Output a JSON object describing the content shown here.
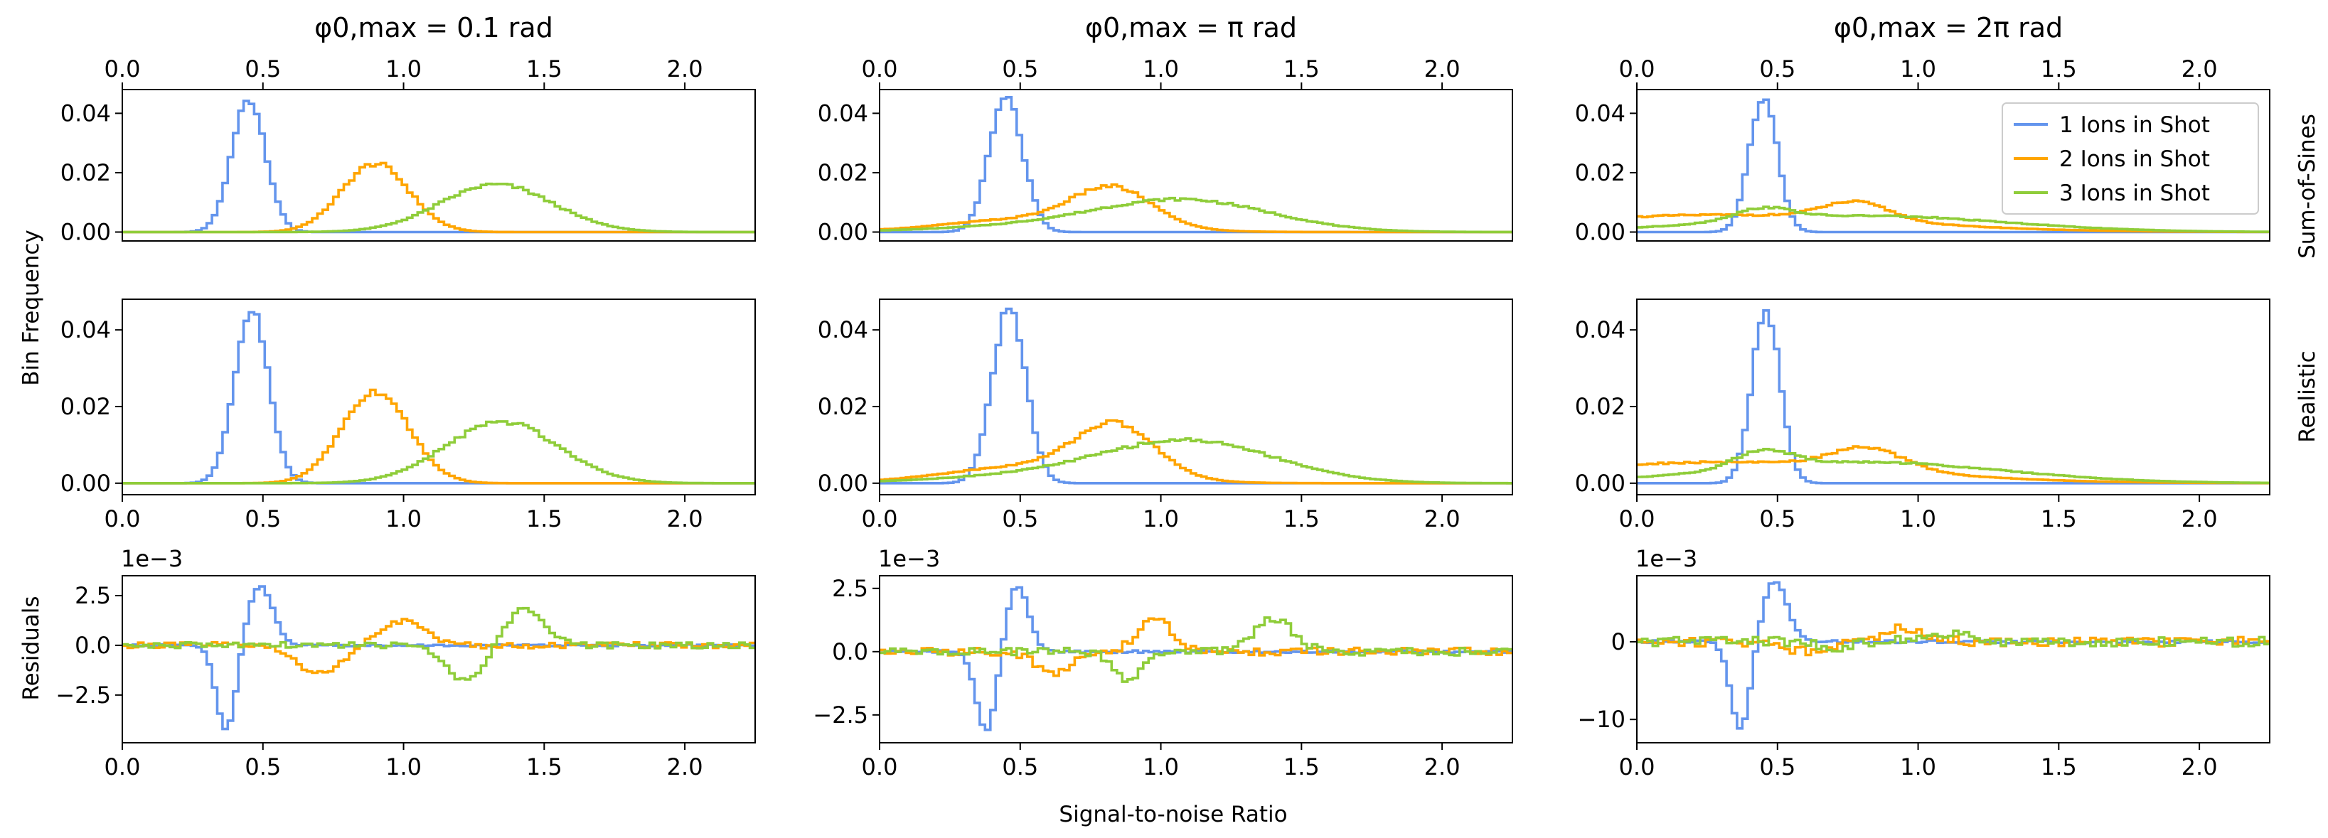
{
  "figure": {
    "column_titles": [
      "φ0,max = 0.1 rad",
      "φ0,max = π rad",
      "φ0,max = 2π rad"
    ],
    "row_labels": [
      "Sum-of-Sines",
      "Realistic"
    ],
    "ylabel_main": "Bin Frequency",
    "ylabel_residuals": "Residuals",
    "xlabel": "Signal-to-noise Ratio",
    "x_tick_labels": [
      "0.0",
      "0.5",
      "1.0",
      "1.5",
      "2.0"
    ],
    "residual_offset_label": "1e−3",
    "legend": [
      "1 Ions in Shot",
      "2 Ions in Shot",
      "3 Ions in Shot"
    ],
    "colors": {
      "ions1": "#6495ed",
      "ions2": "#ffa500",
      "ions3": "#8fcd3a"
    }
  },
  "chart_data": [
    {
      "type": "line",
      "panel": "top",
      "column": 0,
      "title": "φ0,max = 0.1 rad",
      "row_label": "Sum-of-Sines",
      "xlim": [
        0,
        2.25
      ],
      "ylim": [
        -0.003,
        0.048
      ],
      "xticks": [
        0,
        0.5,
        1.0,
        1.5,
        2.0
      ],
      "yticks": [
        0,
        0.02,
        0.04
      ],
      "ytick_labels": [
        "0.00",
        "0.02",
        "0.04"
      ],
      "series": [
        {
          "name": "1 Ions in Shot",
          "peaks": [
            {
              "mu": 0.45,
              "sigma": 0.06,
              "amp": 0.045
            }
          ]
        },
        {
          "name": "2 Ions in Shot",
          "peaks": [
            {
              "mu": 0.9,
              "sigma": 0.12,
              "amp": 0.023
            }
          ]
        },
        {
          "name": "3 Ions in Shot",
          "peaks": [
            {
              "mu": 1.33,
              "sigma": 0.2,
              "amp": 0.016
            }
          ]
        }
      ]
    },
    {
      "type": "line",
      "panel": "top",
      "column": 1,
      "title": "φ0,max = π rad",
      "row_label": "Sum-of-Sines",
      "xlim": [
        0,
        2.25
      ],
      "ylim": [
        -0.003,
        0.048
      ],
      "xticks": [
        0,
        0.5,
        1.0,
        1.5,
        2.0
      ],
      "yticks": [
        0,
        0.02,
        0.04
      ],
      "ytick_labels": [
        "0.00",
        "0.02",
        "0.04"
      ],
      "series": [
        {
          "name": "1 Ions in Shot",
          "peaks": [
            {
              "mu": 0.45,
              "sigma": 0.06,
              "amp": 0.045
            }
          ]
        },
        {
          "name": "2 Ions in Shot",
          "peaks": [
            {
              "mu": 0.83,
              "sigma": 0.14,
              "amp": 0.0125
            },
            {
              "mu": 0.55,
              "sigma": 0.3,
              "amp": 0.0045
            }
          ]
        },
        {
          "name": "3 Ions in Shot",
          "peaks": [
            {
              "mu": 1.1,
              "sigma": 0.3,
              "amp": 0.0095
            },
            {
              "mu": 0.7,
              "sigma": 0.4,
              "amp": 0.0025
            }
          ]
        }
      ]
    },
    {
      "type": "line",
      "panel": "top",
      "column": 2,
      "title": "φ0,max = 2π rad",
      "row_label": "Sum-of-Sines",
      "xlim": [
        0,
        2.25
      ],
      "ylim": [
        -0.003,
        0.048
      ],
      "xticks": [
        0,
        0.5,
        1.0,
        1.5,
        2.0
      ],
      "yticks": [
        0,
        0.02,
        0.04
      ],
      "ytick_labels": [
        "0.00",
        "0.02",
        "0.04"
      ],
      "series": [
        {
          "name": "1 Ions in Shot",
          "peaks": [
            {
              "mu": 0.45,
              "sigma": 0.05,
              "amp": 0.045
            }
          ]
        },
        {
          "name": "2 Ions in Shot",
          "peaks": [
            {
              "mu": 0.78,
              "sigma": 0.12,
              "amp": 0.006
            },
            {
              "mu": 0.3,
              "sigma": 0.6,
              "amp": 0.0058
            }
          ]
        },
        {
          "name": "3 Ions in Shot",
          "peaks": [
            {
              "mu": 0.45,
              "sigma": 0.1,
              "amp": 0.004
            },
            {
              "mu": 0.8,
              "sigma": 0.5,
              "amp": 0.0055
            }
          ]
        }
      ]
    },
    {
      "type": "line",
      "panel": "middle",
      "column": 0,
      "row_label": "Realistic",
      "xlim": [
        0,
        2.25
      ],
      "ylim": [
        -0.003,
        0.048
      ],
      "xticks": [
        0,
        0.5,
        1.0,
        1.5,
        2.0
      ],
      "yticks": [
        0,
        0.02,
        0.04
      ],
      "ytick_labels": [
        "0.00",
        "0.02",
        "0.04"
      ],
      "series": [
        {
          "name": "1 Ions in Shot",
          "peaks": [
            {
              "mu": 0.46,
              "sigma": 0.06,
              "amp": 0.045
            }
          ]
        },
        {
          "name": "2 Ions in Shot",
          "peaks": [
            {
              "mu": 0.9,
              "sigma": 0.12,
              "amp": 0.024
            }
          ]
        },
        {
          "name": "3 Ions in Shot",
          "peaks": [
            {
              "mu": 1.35,
              "sigma": 0.2,
              "amp": 0.016
            }
          ]
        }
      ]
    },
    {
      "type": "line",
      "panel": "middle",
      "column": 1,
      "row_label": "Realistic",
      "xlim": [
        0,
        2.25
      ],
      "ylim": [
        -0.003,
        0.048
      ],
      "xticks": [
        0,
        0.5,
        1.0,
        1.5,
        2.0
      ],
      "yticks": [
        0,
        0.02,
        0.04
      ],
      "ytick_labels": [
        "0.00",
        "0.02",
        "0.04"
      ],
      "series": [
        {
          "name": "1 Ions in Shot",
          "peaks": [
            {
              "mu": 0.46,
              "sigma": 0.06,
              "amp": 0.045
            }
          ]
        },
        {
          "name": "2 Ions in Shot",
          "peaks": [
            {
              "mu": 0.84,
              "sigma": 0.14,
              "amp": 0.013
            },
            {
              "mu": 0.55,
              "sigma": 0.3,
              "amp": 0.0045
            }
          ]
        },
        {
          "name": "3 Ions in Shot",
          "peaks": [
            {
              "mu": 1.12,
              "sigma": 0.3,
              "amp": 0.0098
            },
            {
              "mu": 0.7,
              "sigma": 0.4,
              "amp": 0.0025
            }
          ]
        }
      ]
    },
    {
      "type": "line",
      "panel": "middle",
      "column": 2,
      "row_label": "Realistic",
      "xlim": [
        0,
        2.25
      ],
      "ylim": [
        -0.003,
        0.048
      ],
      "xticks": [
        0,
        0.5,
        1.0,
        1.5,
        2.0
      ],
      "yticks": [
        0,
        0.02,
        0.04
      ],
      "ytick_labels": [
        "0.00",
        "0.02",
        "0.04"
      ],
      "series": [
        {
          "name": "1 Ions in Shot",
          "peaks": [
            {
              "mu": 0.46,
              "sigma": 0.05,
              "amp": 0.045
            }
          ]
        },
        {
          "name": "2 Ions in Shot",
          "peaks": [
            {
              "mu": 0.82,
              "sigma": 0.13,
              "amp": 0.0055
            },
            {
              "mu": 0.3,
              "sigma": 0.6,
              "amp": 0.0055
            }
          ]
        },
        {
          "name": "3 Ions in Shot",
          "peaks": [
            {
              "mu": 0.45,
              "sigma": 0.1,
              "amp": 0.0045
            },
            {
              "mu": 0.8,
              "sigma": 0.5,
              "amp": 0.0055
            }
          ]
        }
      ]
    },
    {
      "type": "line",
      "panel": "residual",
      "column": 0,
      "xlim": [
        0,
        2.25
      ],
      "ylim": [
        -4.9,
        3.5
      ],
      "xticks": [
        0,
        0.5,
        1.0,
        1.5,
        2.0
      ],
      "yticks": [
        -2.5,
        0,
        2.5
      ],
      "ytick_labels": [
        "−2.5",
        "0.0",
        "2.5"
      ],
      "series": [
        {
          "name": "1 Ions in Shot",
          "peaks": [
            {
              "mu": 0.37,
              "sigma": 0.035,
              "amp": -4.3
            },
            {
              "mu": 0.49,
              "sigma": 0.045,
              "amp": 3.0
            }
          ]
        },
        {
          "name": "2 Ions in Shot",
          "peaks": [
            {
              "mu": 0.7,
              "sigma": 0.08,
              "amp": -1.4
            },
            {
              "mu": 1.0,
              "sigma": 0.08,
              "amp": 1.2
            }
          ]
        },
        {
          "name": "3 Ions in Shot",
          "peaks": [
            {
              "mu": 1.22,
              "sigma": 0.07,
              "amp": -1.8
            },
            {
              "mu": 1.43,
              "sigma": 0.07,
              "amp": 1.8
            }
          ]
        }
      ]
    },
    {
      "type": "line",
      "panel": "residual",
      "column": 1,
      "xlim": [
        0,
        2.25
      ],
      "ylim": [
        -3.6,
        3.0
      ],
      "xticks": [
        0,
        0.5,
        1.0,
        1.5,
        2.0
      ],
      "yticks": [
        -2.5,
        0,
        2.5
      ],
      "ytick_labels": [
        "−2.5",
        "0.0",
        "2.5"
      ],
      "series": [
        {
          "name": "1 Ions in Shot",
          "peaks": [
            {
              "mu": 0.38,
              "sigma": 0.035,
              "amp": -3.2
            },
            {
              "mu": 0.49,
              "sigma": 0.04,
              "amp": 2.6
            }
          ]
        },
        {
          "name": "2 Ions in Shot",
          "peaks": [
            {
              "mu": 0.62,
              "sigma": 0.06,
              "amp": -0.9
            },
            {
              "mu": 0.98,
              "sigma": 0.06,
              "amp": 1.3
            }
          ]
        },
        {
          "name": "3 Ions in Shot",
          "peaks": [
            {
              "mu": 0.88,
              "sigma": 0.05,
              "amp": -1.1
            },
            {
              "mu": 1.4,
              "sigma": 0.07,
              "amp": 1.3
            }
          ]
        }
      ]
    },
    {
      "type": "line",
      "panel": "residual",
      "column": 2,
      "xlim": [
        0,
        2.25
      ],
      "ylim": [
        -13,
        8.5
      ],
      "xticks": [
        0,
        0.5,
        1.0,
        1.5,
        2.0
      ],
      "yticks": [
        -10,
        0
      ],
      "ytick_labels": [
        "−10",
        "0"
      ],
      "series": [
        {
          "name": "1 Ions in Shot",
          "peaks": [
            {
              "mu": 0.37,
              "sigma": 0.035,
              "amp": -11.5
            },
            {
              "mu": 0.49,
              "sigma": 0.045,
              "amp": 7.8
            }
          ]
        },
        {
          "name": "2 Ions in Shot",
          "peaks": [
            {
              "mu": 0.6,
              "sigma": 0.07,
              "amp": -1.2
            },
            {
              "mu": 0.95,
              "sigma": 0.08,
              "amp": 1.8
            }
          ]
        },
        {
          "name": "3 Ions in Shot",
          "peaks": [
            {
              "mu": 0.7,
              "sigma": 0.06,
              "amp": -0.8
            },
            {
              "mu": 1.1,
              "sigma": 0.1,
              "amp": 0.9
            }
          ]
        }
      ]
    }
  ]
}
